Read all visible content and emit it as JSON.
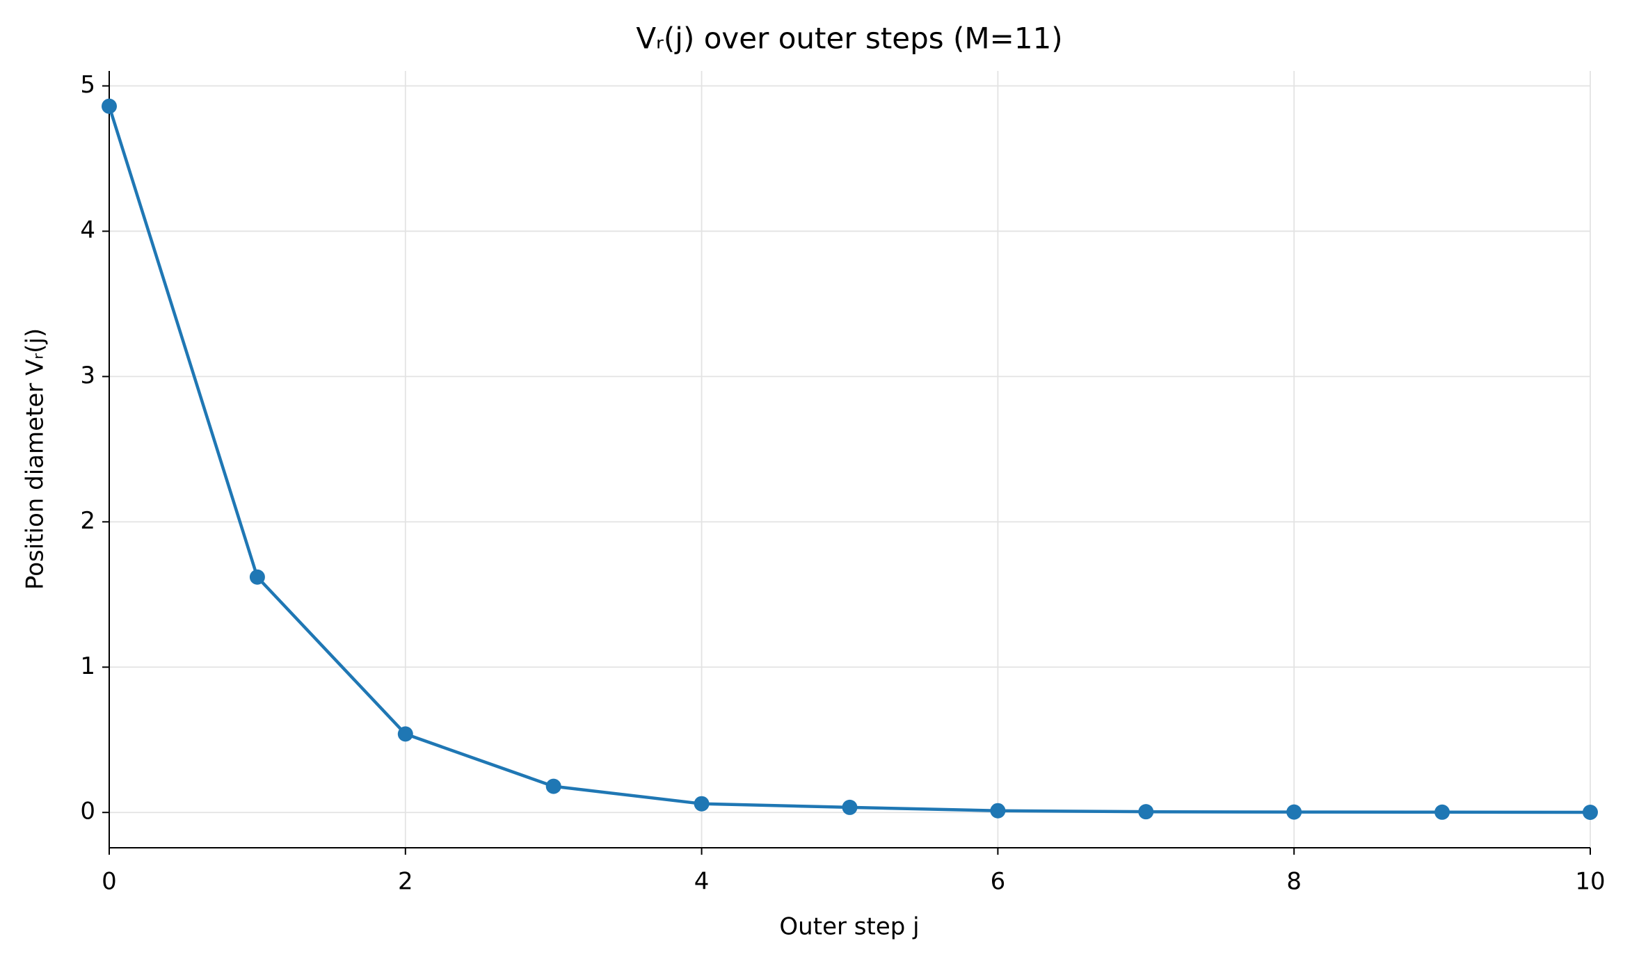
{
  "chart_data": {
    "type": "line",
    "title": "Vᵣ(j) over outer steps (M=11)",
    "xlabel": "Outer step j",
    "ylabel": "Position diameter Vᵣ(j)",
    "x": [
      0,
      1,
      2,
      3,
      4,
      5,
      6,
      7,
      8,
      9,
      10
    ],
    "series": [
      {
        "name": "Vᵣ(j)",
        "color": "#1f77b4",
        "values": [
          4.86,
          1.62,
          0.54,
          0.18,
          0.06,
          0.035,
          0.012,
          0.005,
          0.003,
          0.002,
          0.001
        ]
      }
    ],
    "xlim": [
      0,
      10
    ],
    "ylim": [
      -0.243,
      5.103
    ],
    "xticks": [
      0,
      2,
      4,
      6,
      8,
      10
    ],
    "yticks": [
      0,
      1,
      2,
      3,
      4,
      5
    ],
    "grid": true
  }
}
